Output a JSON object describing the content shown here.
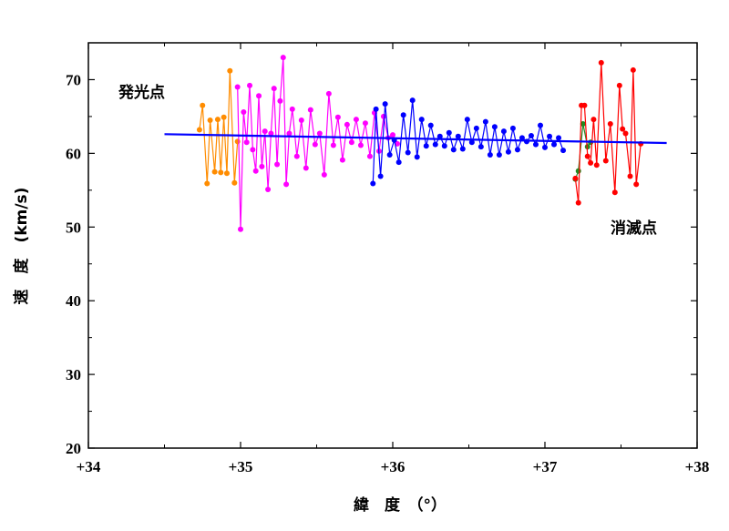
{
  "chart_data": {
    "type": "line",
    "title": "",
    "xlabel": "緯　度　（°）",
    "ylabel": "速　度　(km/s)",
    "xlim": [
      34,
      38
    ],
    "ylim": [
      20,
      75
    ],
    "x_ticks": [
      34,
      35,
      36,
      37,
      38
    ],
    "x_tick_labels": [
      "+34",
      "+35",
      "+36",
      "+37",
      "+38"
    ],
    "y_ticks": [
      20,
      30,
      40,
      50,
      60,
      70
    ],
    "y_tick_labels": [
      "20",
      "30",
      "40",
      "50",
      "60",
      "70"
    ],
    "grid": false,
    "annotations": [
      {
        "text": "発光点",
        "x": 34.37,
        "y": 68.5
      },
      {
        "text": "消滅点",
        "x": 37.82,
        "y": 49.0
      }
    ],
    "series": [
      {
        "name": "orange",
        "color": "#ff8c00",
        "x": [
          34.73,
          34.75,
          34.78,
          34.8,
          34.83,
          34.85,
          34.87,
          34.89,
          34.91,
          34.93,
          34.96,
          34.98
        ],
        "y": [
          63.2,
          66.5,
          55.9,
          64.5,
          57.5,
          64.6,
          57.4,
          64.9,
          57.3,
          71.2,
          56.0,
          61.6
        ]
      },
      {
        "name": "magenta",
        "color": "#ff00ff",
        "x": [
          34.98,
          35.0,
          35.02,
          35.04,
          35.06,
          35.08,
          35.1,
          35.12,
          35.14,
          35.16,
          35.18,
          35.2,
          35.22,
          35.24,
          35.26,
          35.28,
          35.3,
          35.32,
          35.34,
          35.37,
          35.4,
          35.43,
          35.46,
          35.49,
          35.52,
          35.55,
          35.58,
          35.61,
          35.64,
          35.67,
          35.7,
          35.73,
          35.76,
          35.79,
          35.82,
          35.85,
          35.88,
          35.91,
          35.94,
          35.97,
          36.0,
          36.03
        ],
        "y": [
          69.0,
          49.7,
          65.6,
          61.5,
          69.2,
          60.5,
          57.6,
          67.8,
          58.2,
          63.0,
          55.1,
          62.7,
          68.8,
          58.5,
          67.1,
          73.0,
          55.8,
          62.7,
          66.0,
          59.6,
          64.5,
          58.0,
          65.9,
          61.2,
          62.7,
          57.1,
          68.1,
          61.1,
          64.9,
          59.1,
          63.9,
          61.5,
          64.6,
          61.1,
          64.1,
          59.6,
          65.5,
          60.3,
          65.0,
          62.1,
          62.5,
          61.3
        ]
      },
      {
        "name": "blue",
        "color": "#0000ff",
        "x": [
          35.87,
          35.89,
          35.92,
          35.95,
          35.98,
          36.01,
          36.04,
          36.07,
          36.1,
          36.13,
          36.16,
          36.19,
          36.22,
          36.25,
          36.28,
          36.31,
          36.34,
          36.37,
          36.4,
          36.43,
          36.46,
          36.49,
          36.52,
          36.55,
          36.58,
          36.61,
          36.64,
          36.67,
          36.7,
          36.73,
          36.76,
          36.79,
          36.82,
          36.85,
          36.88,
          36.91,
          36.94,
          36.97,
          37.0,
          37.03,
          37.06,
          37.09,
          37.12
        ],
        "y": [
          55.9,
          66.0,
          56.9,
          66.7,
          59.8,
          61.8,
          58.8,
          65.2,
          60.1,
          67.2,
          59.5,
          64.6,
          61.0,
          63.8,
          61.2,
          62.3,
          61.0,
          62.8,
          60.5,
          62.3,
          60.6,
          64.6,
          61.5,
          63.4,
          60.9,
          64.3,
          59.8,
          63.6,
          59.8,
          63.0,
          60.2,
          63.4,
          60.5,
          62.1,
          61.6,
          62.4,
          61.2,
          63.8,
          60.8,
          62.3,
          61.2,
          62.1,
          60.4
        ]
      },
      {
        "name": "darkgreen",
        "color": "#228b22",
        "x": [
          37.2,
          37.22,
          37.25,
          37.28,
          37.3
        ],
        "y": [
          56.5,
          57.6,
          64.0,
          60.9,
          61.5
        ]
      },
      {
        "name": "red",
        "color": "#ff0000",
        "x": [
          37.2,
          37.22,
          37.24,
          37.26,
          37.28,
          37.3,
          37.32,
          37.34,
          37.37,
          37.4,
          37.43,
          37.46,
          37.49,
          37.51,
          37.53,
          37.56,
          37.58,
          37.6,
          37.63
        ],
        "y": [
          56.6,
          53.3,
          66.5,
          66.5,
          59.6,
          58.7,
          64.6,
          58.4,
          72.3,
          59.0,
          64.0,
          54.7,
          69.2,
          63.3,
          62.7,
          56.9,
          71.3,
          55.8,
          61.3
        ]
      }
    ],
    "trend": {
      "name": "trend",
      "color": "#0000ff",
      "x": [
        34.5,
        37.8
      ],
      "y": [
        62.6,
        61.4
      ]
    }
  }
}
